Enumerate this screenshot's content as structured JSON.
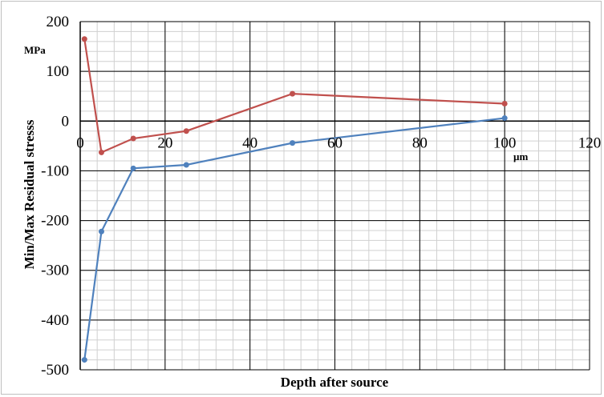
{
  "chart_data": {
    "type": "line",
    "xlabel": "Depth after source",
    "ylabel": "Min/Max  Residual stresss",
    "x_unit": "µm",
    "y_unit": "MPa",
    "xlim": [
      0,
      120
    ],
    "ylim": [
      -500,
      200
    ],
    "x_ticks": [
      0,
      20,
      40,
      60,
      80,
      100,
      120
    ],
    "y_ticks": [
      200,
      100,
      0,
      -100,
      -200,
      -300,
      -400,
      -500
    ],
    "grid": true,
    "legend": "none",
    "series": [
      {
        "color": "#c0504d",
        "x": [
          1,
          5,
          12.5,
          25,
          50,
          100
        ],
        "y": [
          165,
          -63,
          -35,
          -20,
          55,
          35
        ]
      },
      {
        "color": "#4f81bd",
        "x": [
          1,
          5,
          12.5,
          25,
          50,
          100
        ],
        "y": [
          -480,
          -222,
          -95,
          -88,
          -44,
          6
        ]
      }
    ]
  }
}
